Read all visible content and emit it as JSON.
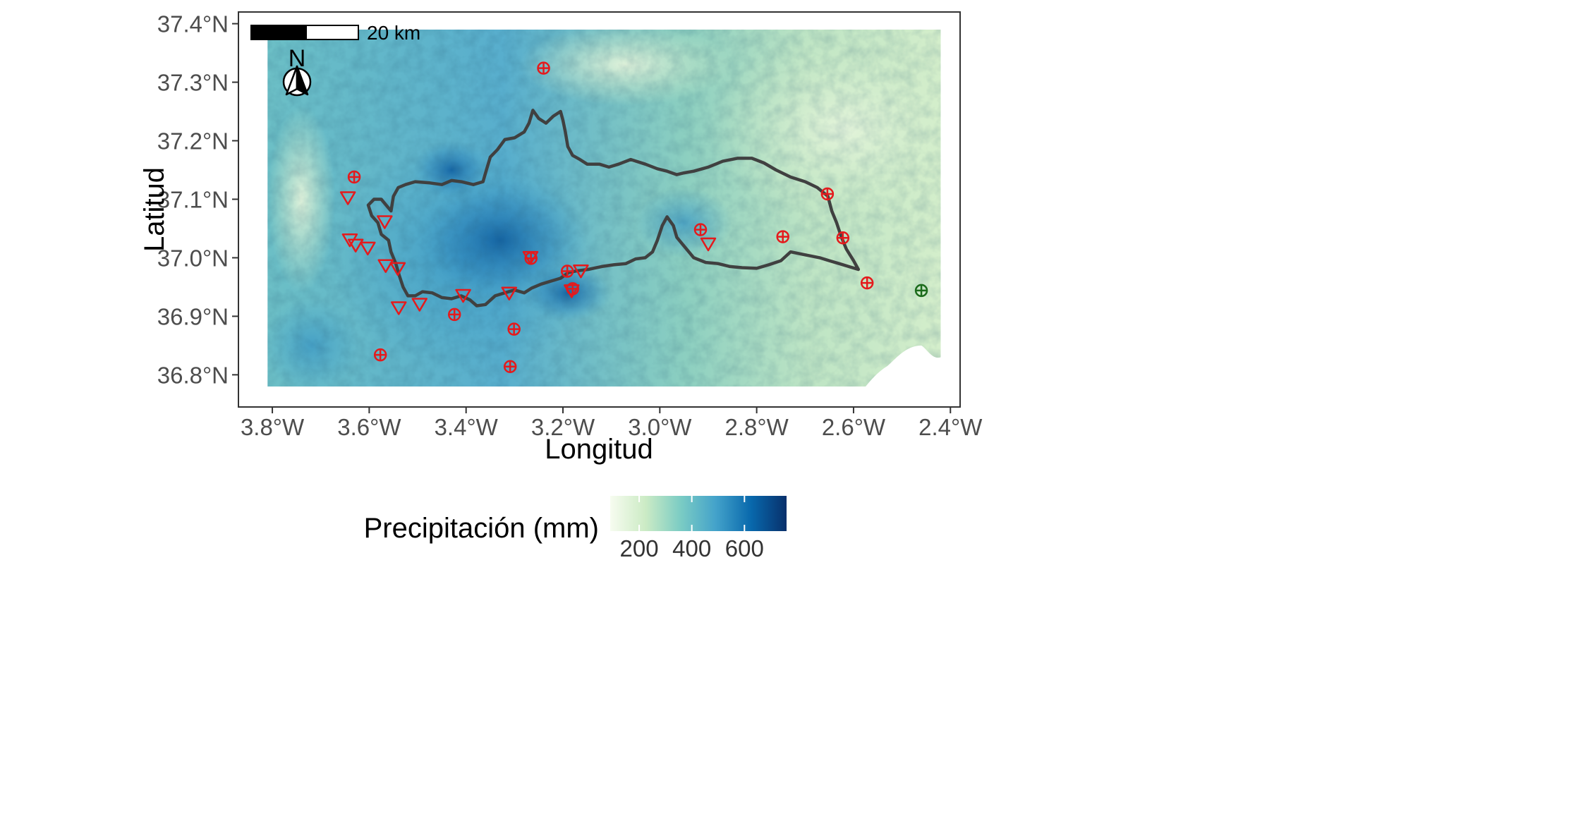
{
  "figure": {
    "xlabel": "Longitud",
    "ylabel": "Latitud",
    "x_ticks": [
      "3.8°W",
      "3.6°W",
      "3.4°W",
      "3.2°W",
      "3.0°W",
      "2.8°W",
      "2.6°W",
      "2.4°W"
    ],
    "y_ticks": [
      "37.4°N",
      "37.3°N",
      "37.2°N",
      "37.1°N",
      "37.0°N",
      "36.9°N",
      "36.8°N"
    ],
    "x_range": [
      -3.87,
      -2.38
    ],
    "y_range": [
      36.745,
      37.42
    ],
    "raster_extent": {
      "lon": [
        -3.81,
        -2.42
      ],
      "lat": [
        36.78,
        37.39
      ]
    },
    "scale_bar_label": "20 km",
    "north_label": "N"
  },
  "legend": {
    "title": "Precipitación (mm)",
    "ticks": [
      "200",
      "400",
      "600"
    ],
    "range": [
      90,
      760
    ],
    "colors": [
      "#f7fcf0",
      "#ccebc5",
      "#7bccc4",
      "#43a2ca",
      "#0868ac",
      "#08306b"
    ]
  },
  "colors": {
    "boundary": "#404040",
    "station_red": "#e41a1c",
    "station_green": "#1b6b1b"
  },
  "map_data": {
    "boundary": [
      [
        -3.595,
        37.072
      ],
      [
        -3.582,
        37.06
      ],
      [
        -3.575,
        37.04
      ],
      [
        -3.56,
        37.03
      ],
      [
        -3.555,
        37.01
      ],
      [
        -3.545,
        36.99
      ],
      [
        -3.538,
        36.97
      ],
      [
        -3.53,
        36.95
      ],
      [
        -3.52,
        36.935
      ],
      [
        -3.505,
        36.935
      ],
      [
        -3.49,
        36.942
      ],
      [
        -3.47,
        36.94
      ],
      [
        -3.45,
        36.932
      ],
      [
        -3.43,
        36.93
      ],
      [
        -3.41,
        36.935
      ],
      [
        -3.392,
        36.928
      ],
      [
        -3.378,
        36.918
      ],
      [
        -3.36,
        36.92
      ],
      [
        -3.34,
        36.935
      ],
      [
        -3.32,
        36.94
      ],
      [
        -3.3,
        36.945
      ],
      [
        -3.28,
        36.94
      ],
      [
        -3.265,
        36.948
      ],
      [
        -3.245,
        36.955
      ],
      [
        -3.225,
        36.96
      ],
      [
        -3.205,
        36.965
      ],
      [
        -3.188,
        36.975
      ],
      [
        -3.168,
        36.978
      ],
      [
        -3.148,
        36.98
      ],
      [
        -3.12,
        36.985
      ],
      [
        -3.095,
        36.988
      ],
      [
        -3.07,
        36.99
      ],
      [
        -3.05,
        36.998
      ],
      [
        -3.03,
        37.0
      ],
      [
        -3.015,
        37.01
      ],
      [
        -3.005,
        37.03
      ],
      [
        -2.995,
        37.055
      ],
      [
        -2.985,
        37.07
      ],
      [
        -2.972,
        37.055
      ],
      [
        -2.965,
        37.035
      ],
      [
        -2.955,
        37.025
      ],
      [
        -2.93,
        37.0
      ],
      [
        -2.905,
        36.992
      ],
      [
        -2.88,
        36.99
      ],
      [
        -2.855,
        36.985
      ],
      [
        -2.83,
        36.983
      ],
      [
        -2.8,
        36.982
      ],
      [
        -2.775,
        36.988
      ],
      [
        -2.75,
        36.995
      ],
      [
        -2.73,
        37.01
      ],
      [
        -2.7,
        37.005
      ],
      [
        -2.67,
        37.0
      ],
      [
        -2.65,
        36.995
      ],
      [
        -2.63,
        36.99
      ],
      [
        -2.61,
        36.985
      ],
      [
        -2.59,
        36.98
      ],
      [
        -2.6,
        36.995
      ],
      [
        -2.615,
        37.015
      ],
      [
        -2.625,
        37.035
      ],
      [
        -2.635,
        37.06
      ],
      [
        -2.645,
        37.08
      ],
      [
        -2.653,
        37.105
      ],
      [
        -2.675,
        37.12
      ],
      [
        -2.7,
        37.13
      ],
      [
        -2.73,
        37.138
      ],
      [
        -2.76,
        37.15
      ],
      [
        -2.785,
        37.162
      ],
      [
        -2.81,
        37.17
      ],
      [
        -2.84,
        37.17
      ],
      [
        -2.87,
        37.165
      ],
      [
        -2.9,
        37.155
      ],
      [
        -2.93,
        37.148
      ],
      [
        -2.95,
        37.145
      ],
      [
        -2.965,
        37.142
      ],
      [
        -2.985,
        37.148
      ],
      [
        -3.005,
        37.152
      ],
      [
        -3.03,
        37.16
      ],
      [
        -3.06,
        37.168
      ],
      [
        -3.085,
        37.16
      ],
      [
        -3.105,
        37.155
      ],
      [
        -3.125,
        37.16
      ],
      [
        -3.15,
        37.16
      ],
      [
        -3.165,
        37.168
      ],
      [
        -3.18,
        37.175
      ],
      [
        -3.19,
        37.19
      ],
      [
        -3.195,
        37.215
      ],
      [
        -3.2,
        37.235
      ],
      [
        -3.205,
        37.25
      ],
      [
        -3.22,
        37.242
      ],
      [
        -3.235,
        37.23
      ],
      [
        -3.25,
        37.238
      ],
      [
        -3.262,
        37.252
      ],
      [
        -3.27,
        37.23
      ],
      [
        -3.28,
        37.215
      ],
      [
        -3.3,
        37.205
      ],
      [
        -3.32,
        37.202
      ],
      [
        -3.335,
        37.185
      ],
      [
        -3.35,
        37.172
      ],
      [
        -3.358,
        37.15
      ],
      [
        -3.365,
        37.13
      ],
      [
        -3.385,
        37.125
      ],
      [
        -3.41,
        37.13
      ],
      [
        -3.43,
        37.132
      ],
      [
        -3.45,
        37.125
      ],
      [
        -3.475,
        37.128
      ],
      [
        -3.505,
        37.13
      ],
      [
        -3.525,
        37.125
      ],
      [
        -3.54,
        37.12
      ],
      [
        -3.55,
        37.105
      ],
      [
        -3.555,
        37.08
      ],
      [
        -3.56,
        37.085
      ],
      [
        -3.575,
        37.1
      ],
      [
        -3.59,
        37.1
      ],
      [
        -3.602,
        37.09
      ],
      [
        -3.595,
        37.072
      ]
    ],
    "stations_circle_red": [
      [
        -3.24,
        37.324
      ],
      [
        -3.631,
        37.138
      ],
      [
        -2.916,
        37.048
      ],
      [
        -2.746,
        37.036
      ],
      [
        -2.654,
        37.109
      ],
      [
        -2.622,
        37.034
      ],
      [
        -2.572,
        36.957
      ],
      [
        -3.191,
        36.977
      ],
      [
        -3.266,
        36.999
      ],
      [
        -3.18,
        36.947
      ],
      [
        -3.424,
        36.903
      ],
      [
        -3.301,
        36.878
      ],
      [
        -3.309,
        36.814
      ],
      [
        -3.577,
        36.834
      ]
    ],
    "stations_circle_green": [
      [
        -2.46,
        36.944
      ]
    ],
    "stations_triangle_red": [
      [
        -3.644,
        37.103
      ],
      [
        -3.568,
        37.062
      ],
      [
        -3.64,
        37.031
      ],
      [
        -3.628,
        37.022
      ],
      [
        -3.603,
        37.017
      ],
      [
        -3.566,
        36.987
      ],
      [
        -3.541,
        36.982
      ],
      [
        -3.539,
        36.915
      ],
      [
        -3.496,
        36.921
      ],
      [
        -3.406,
        36.936
      ],
      [
        -3.311,
        36.94
      ],
      [
        -3.267,
        37.001
      ],
      [
        -3.182,
        36.944
      ],
      [
        -3.163,
        36.978
      ],
      [
        -2.9,
        37.024
      ]
    ]
  }
}
